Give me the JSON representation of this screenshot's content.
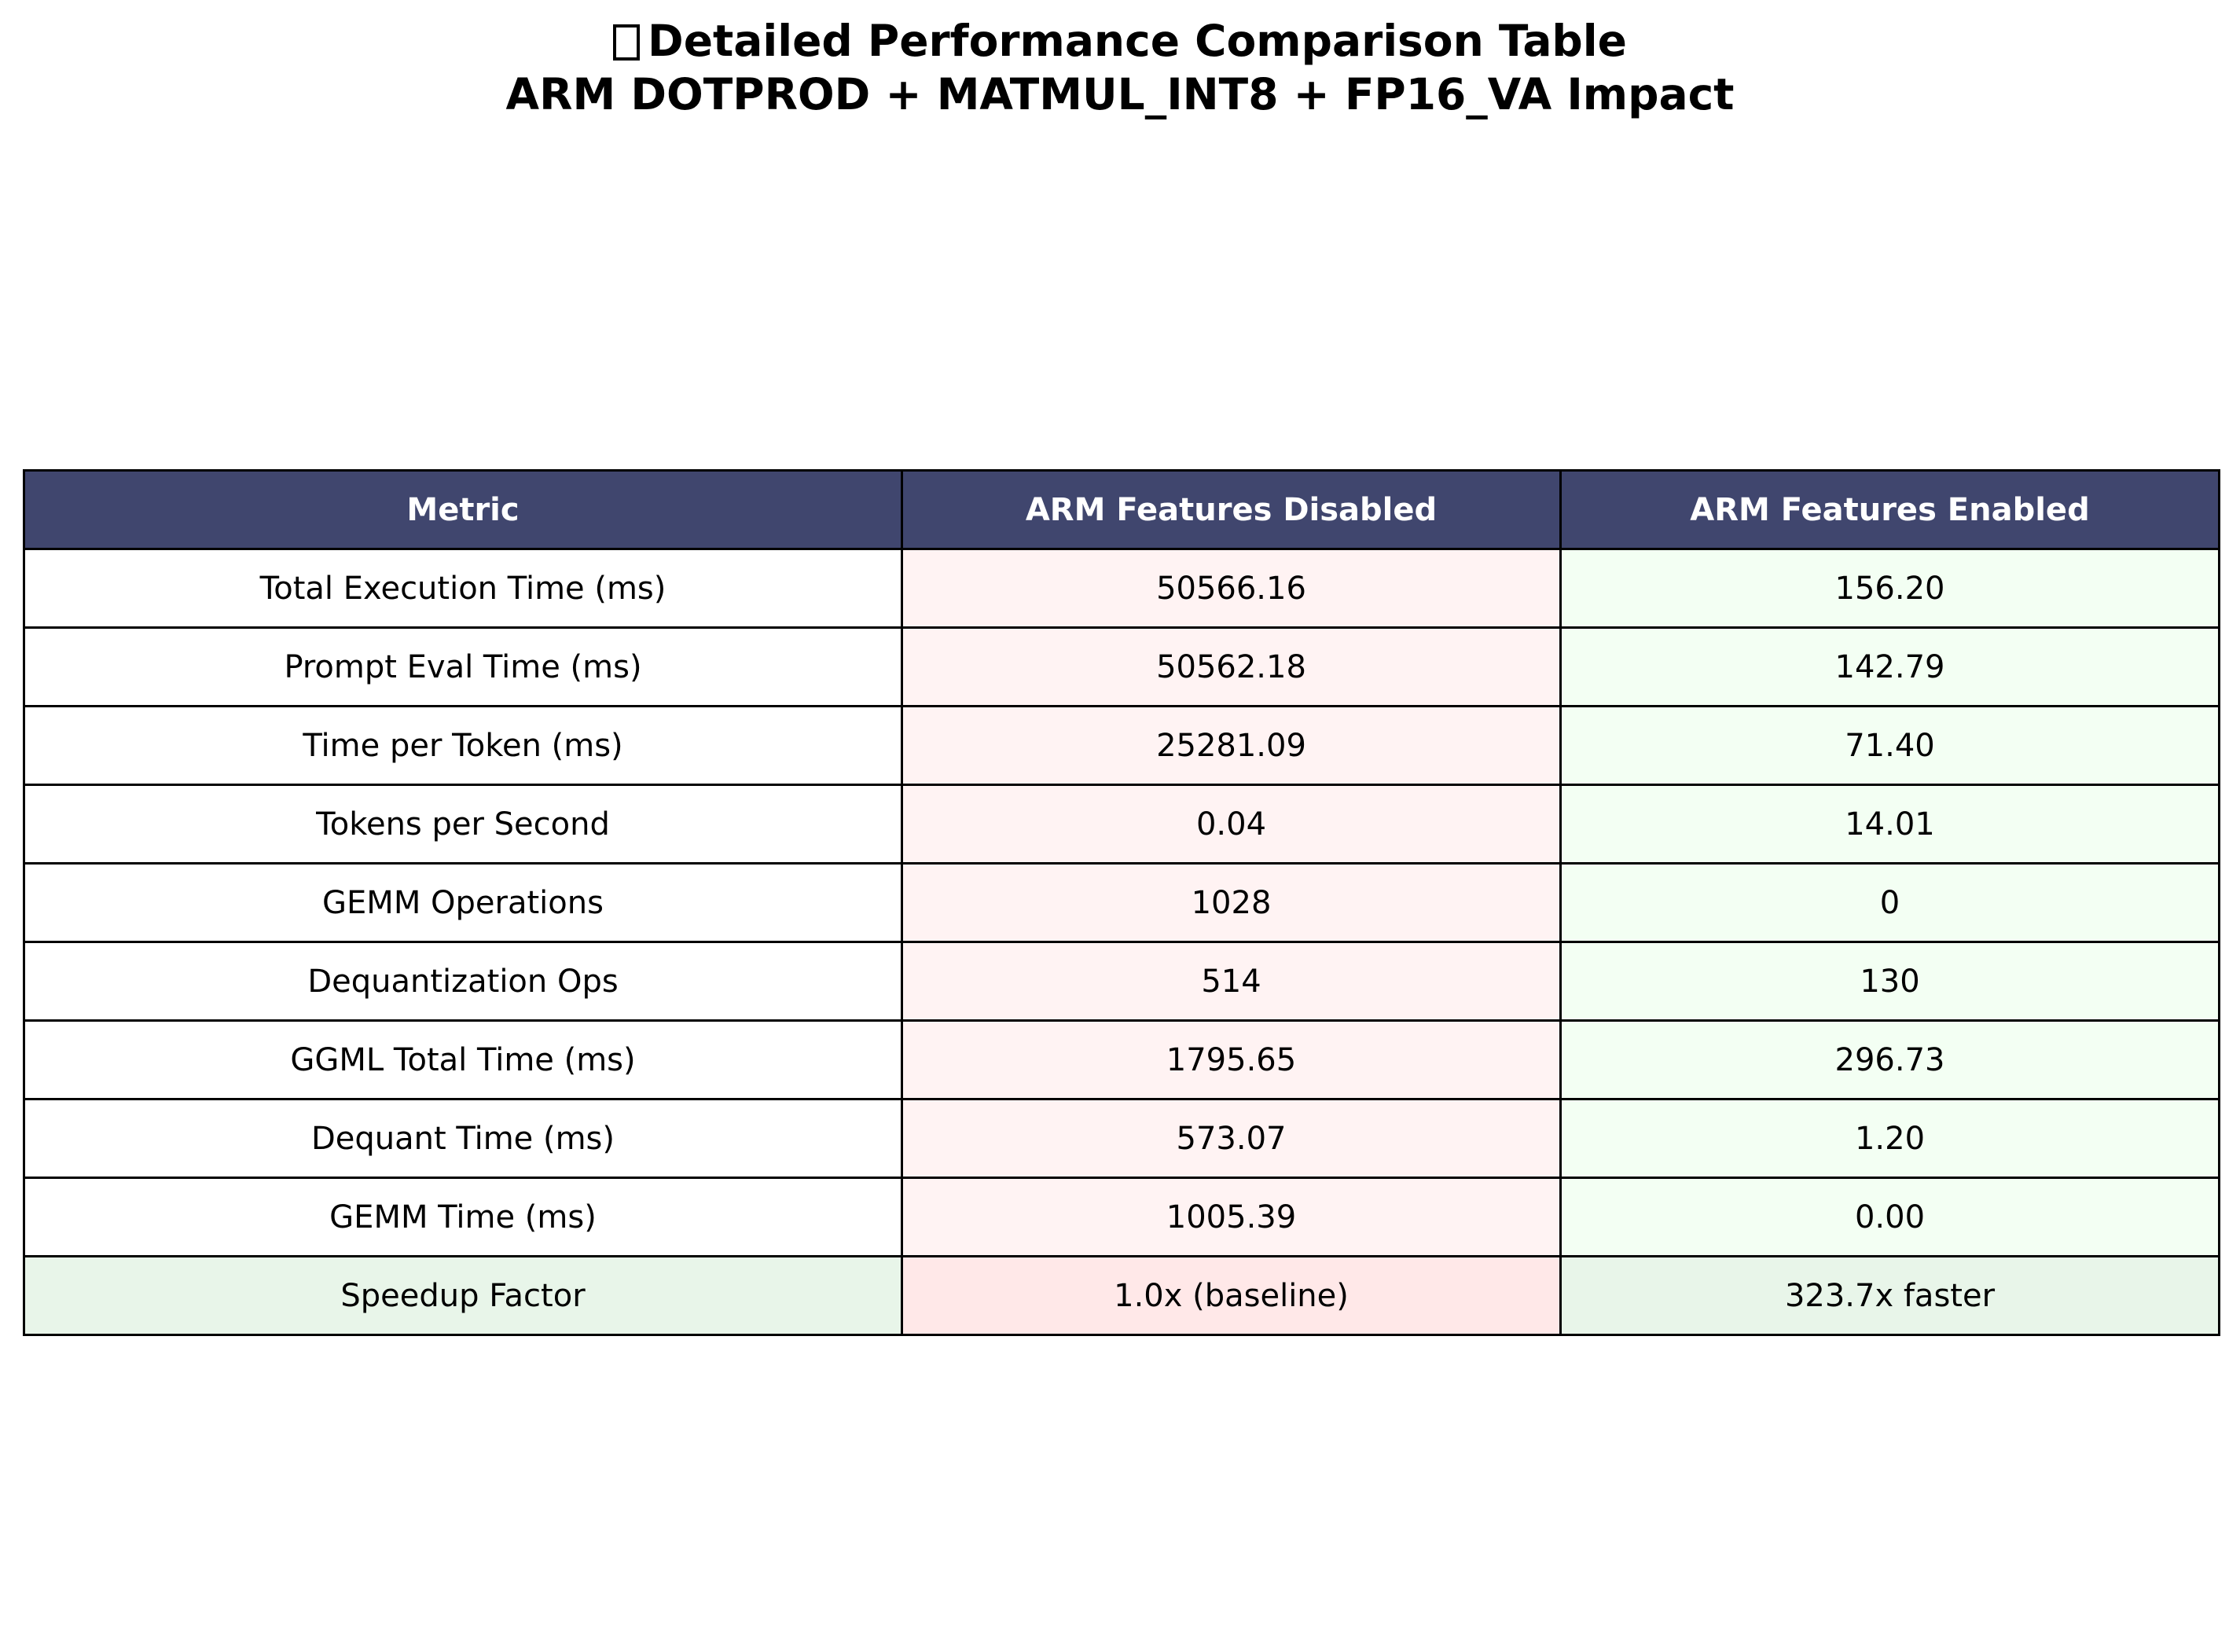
{
  "title": {
    "line1_icon": "missing-glyph-icon",
    "line1": "Detailed Performance Comparison Table",
    "line2": "ARM DOTPROD + MATMUL_INT8 + FP16_VA Impact"
  },
  "colors": {
    "header_bg": "#40466e",
    "header_text": "#ffffff",
    "disabled_cell": "#fff3f3",
    "enabled_cell": "#f3fff3",
    "speedup_metric_cell": "#e8f5e9",
    "speedup_disabled_cell": "#ffe8e8",
    "speedup_enabled_cell": "#e8f5e9"
  },
  "chart_data": {
    "type": "table",
    "columns": [
      "Metric",
      "ARM Features Disabled",
      "ARM Features Enabled"
    ],
    "rows": [
      [
        "Total Execution Time (ms)",
        "50566.16",
        "156.20"
      ],
      [
        "Prompt Eval Time (ms)",
        "50562.18",
        "142.79"
      ],
      [
        "Time per Token (ms)",
        "25281.09",
        "71.40"
      ],
      [
        "Tokens per Second",
        "0.04",
        "14.01"
      ],
      [
        "GEMM Operations",
        "1028",
        "0"
      ],
      [
        "Dequantization Ops",
        "514",
        "130"
      ],
      [
        "GGML Total Time (ms)",
        "1795.65",
        "296.73"
      ],
      [
        "Dequant Time (ms)",
        "573.07",
        "1.20"
      ],
      [
        "GEMM Time (ms)",
        "1005.39",
        "0.00"
      ],
      [
        "Speedup Factor",
        "1.0x (baseline)",
        "323.7x faster"
      ]
    ]
  }
}
